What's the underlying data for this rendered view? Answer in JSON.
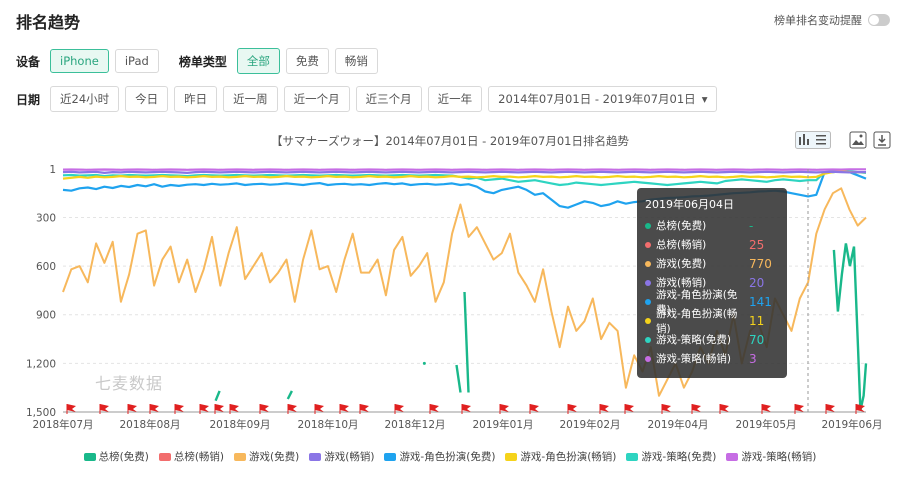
{
  "page": {
    "title": "排名趋势",
    "toggle_label": "榜单排名变动提醒"
  },
  "filters": {
    "device_label": "设备",
    "devices": [
      "iPhone",
      "iPad"
    ],
    "chart_type_label": "榜单类型",
    "chart_types": [
      "全部",
      "免费",
      "畅销"
    ],
    "date_label": "日期",
    "date_presets": [
      "近24小时",
      "今日",
      "昨日",
      "近一周",
      "近一个月",
      "近三个月",
      "近一年"
    ],
    "date_range": "2014年07月01日 - 2019年07月01日"
  },
  "chart_title": "【サマナーズウォー】2014年07月01日 - 2019年07月01日排名趋势",
  "watermark": "七麦数据",
  "tooltip": {
    "date": "2019年06月04日",
    "rows": [
      {
        "name": "总榜(免费)",
        "value": "-",
        "color": "#19b88a"
      },
      {
        "name": "总榜(畅销)",
        "value": "25",
        "color": "#f26d6d"
      },
      {
        "name": "游戏(免费)",
        "value": "770",
        "color": "#f7b85c"
      },
      {
        "name": "游戏(畅销)",
        "value": "20",
        "color": "#8a75e6"
      },
      {
        "name": "游戏-角色扮演(免费)",
        "value": "141",
        "color": "#1fa3ef"
      },
      {
        "name": "游戏-角色扮演(畅销)",
        "value": "11",
        "color": "#f5d31b"
      },
      {
        "name": "游戏-策略(免费)",
        "value": "70",
        "color": "#2ed4c1"
      },
      {
        "name": "游戏-策略(畅销)",
        "value": "3",
        "color": "#c66de4"
      }
    ]
  },
  "chart_data": {
    "type": "line",
    "y_reversed": true,
    "ylim": [
      1,
      1500
    ],
    "y_ticks": [
      "1",
      "300",
      "600",
      "900",
      "1,200",
      "1,500"
    ],
    "x_ticks": [
      "2018年07月",
      "2018年08月",
      "2018年09月",
      "2018年10月",
      "2018年12月",
      "2019年01月",
      "2019年02月",
      "2019年04月",
      "2019年05月",
      "2019年06月"
    ],
    "series": [
      {
        "name": "总榜(免费)",
        "color": "#19b88a",
        "segments": [
          [
            [
              0.5,
              760
            ],
            [
              0.505,
              1380
            ]
          ],
          [
            [
              0.19,
              1430
            ],
            [
              0.195,
              1370
            ]
          ],
          [
            [
              0.28,
              1420
            ],
            [
              0.285,
              1370
            ]
          ],
          [
            [
              0.45,
              1200
            ]
          ],
          [
            [
              0.49,
              1210
            ],
            [
              0.495,
              1380
            ]
          ],
          [
            [
              0.96,
              500
            ],
            [
              0.965,
              880
            ],
            [
              0.97,
              650
            ],
            [
              0.975,
              460
            ],
            [
              0.98,
              600
            ],
            [
              0.985,
              480
            ],
            [
              0.99,
              1100
            ],
            [
              0.993,
              1490
            ],
            [
              0.997,
              1400
            ],
            [
              1.0,
              1200
            ]
          ]
        ]
      },
      {
        "name": "总榜(畅销)",
        "color": "#f26d6d",
        "values": []
      },
      {
        "name": "游戏(免费)",
        "color": "#f7b85c",
        "values": [
          760,
          620,
          600,
          700,
          460,
          580,
          450,
          820,
          650,
          400,
          380,
          720,
          560,
          480,
          700,
          560,
          760,
          620,
          420,
          720,
          520,
          360,
          680,
          600,
          520,
          700,
          640,
          560,
          820,
          560,
          380,
          620,
          600,
          760,
          560,
          400,
          640,
          640,
          560,
          780,
          500,
          420,
          660,
          600,
          520,
          820,
          700,
          400,
          220,
          420,
          360,
          460,
          560,
          520,
          400,
          640,
          720,
          820,
          620,
          880,
          1100,
          850,
          1000,
          940,
          800,
          1050,
          950,
          1000,
          1350,
          1150,
          1250,
          1100,
          1400,
          1300,
          1200,
          1350,
          1250,
          1100,
          1200,
          1000,
          1150,
          900,
          1200,
          1000,
          950,
          1100,
          800,
          900,
          1000,
          800,
          700,
          400,
          250,
          150,
          120,
          250,
          350,
          300
        ]
      },
      {
        "name": "游戏(畅销)",
        "color": "#8a75e6",
        "values": [
          20,
          18,
          22,
          20,
          18,
          25,
          20,
          22,
          18,
          20,
          22,
          20,
          18,
          20,
          22,
          25,
          20,
          18,
          20,
          22,
          20,
          18,
          20,
          22,
          20,
          18,
          20,
          22,
          20,
          18,
          20,
          22,
          20,
          18,
          20,
          22,
          20,
          18,
          20,
          22,
          20,
          18,
          20,
          22,
          20,
          18,
          20,
          22,
          20,
          18,
          20,
          22,
          20,
          18,
          20,
          22,
          20,
          18,
          20,
          22,
          20,
          18,
          20,
          22,
          20,
          18,
          20,
          22,
          20,
          18,
          20,
          22,
          20,
          18,
          20,
          22,
          20,
          18,
          20,
          22,
          20,
          18,
          20,
          22,
          20,
          18,
          20,
          22,
          20,
          18,
          20,
          22,
          20,
          18,
          20,
          22,
          20,
          20
        ]
      },
      {
        "name": "游戏-角色扮演(免费)",
        "color": "#1fa3ef",
        "values": [
          130,
          135,
          120,
          115,
          125,
          110,
          118,
          105,
          112,
          100,
          108,
          95,
          110,
          100,
          105,
          98,
          95,
          100,
          92,
          98,
          95,
          90,
          100,
          95,
          92,
          98,
          95,
          90,
          95,
          100,
          92,
          88,
          100,
          95,
          92,
          98,
          95,
          100,
          92,
          88,
          95,
          90,
          100,
          95,
          92,
          98,
          95,
          90,
          100,
          95,
          110,
          140,
          150,
          130,
          120,
          110,
          130,
          160,
          150,
          190,
          230,
          240,
          220,
          200,
          210,
          230,
          220,
          200,
          215,
          205,
          200,
          190,
          185,
          180,
          178,
          175,
          170,
          168,
          165,
          160,
          155,
          150,
          148,
          145,
          140,
          138,
          135,
          140,
          150,
          160,
          170,
          160,
          20,
          20,
          15,
          20,
          40,
          60
        ]
      },
      {
        "name": "游戏-角色扮演(畅销)",
        "color": "#f5d31b",
        "values": [
          60,
          55,
          50,
          55,
          48,
          52,
          50,
          45,
          50,
          48,
          52,
          50,
          45,
          50,
          48,
          52,
          50,
          45,
          50,
          48,
          52,
          50,
          45,
          50,
          48,
          52,
          50,
          45,
          50,
          48,
          52,
          50,
          45,
          50,
          48,
          52,
          50,
          45,
          50,
          48,
          52,
          50,
          45,
          50,
          48,
          52,
          50,
          45,
          50,
          48,
          52,
          50,
          45,
          50,
          48,
          52,
          50,
          45,
          50,
          48,
          52,
          50,
          45,
          50,
          48,
          52,
          50,
          45,
          50,
          48,
          52,
          50,
          45,
          50,
          48,
          52,
          50,
          45,
          50,
          48,
          52,
          50,
          45,
          50,
          48,
          52,
          50,
          45,
          50,
          48,
          52,
          50,
          30,
          20,
          15,
          20,
          20,
          20
        ]
      },
      {
        "name": "游戏-策略(免费)",
        "color": "#2ed4c1",
        "values": [
          40,
          38,
          42,
          40,
          38,
          45,
          40,
          42,
          38,
          40,
          42,
          40,
          38,
          40,
          42,
          45,
          40,
          38,
          40,
          42,
          40,
          38,
          40,
          42,
          40,
          38,
          40,
          42,
          40,
          38,
          40,
          42,
          40,
          38,
          40,
          42,
          40,
          38,
          40,
          42,
          40,
          38,
          40,
          42,
          40,
          38,
          40,
          42,
          50,
          60,
          55,
          70,
          65,
          60,
          70,
          80,
          75,
          70,
          80,
          90,
          100,
          95,
          85,
          90,
          95,
          100,
          95,
          90,
          85,
          80,
          85,
          90,
          95,
          100,
          95,
          90,
          85,
          80,
          85,
          90,
          75,
          70,
          65,
          70,
          75,
          80,
          70,
          65,
          70,
          75,
          70,
          70,
          20,
          15,
          10,
          15,
          20,
          25
        ]
      },
      {
        "name": "游戏-策略(畅销)",
        "color": "#c66de4",
        "values": [
          5,
          4,
          5,
          6,
          5,
          4,
          5,
          6,
          5,
          4,
          5,
          6,
          5,
          4,
          5,
          6,
          5,
          4,
          5,
          6,
          5,
          4,
          5,
          6,
          5,
          4,
          5,
          6,
          5,
          4,
          5,
          6,
          5,
          4,
          5,
          6,
          5,
          4,
          5,
          6,
          5,
          4,
          5,
          6,
          5,
          4,
          5,
          6,
          5,
          4,
          5,
          6,
          5,
          4,
          5,
          6,
          5,
          4,
          5,
          6,
          5,
          4,
          5,
          6,
          5,
          4,
          5,
          6,
          5,
          4,
          5,
          6,
          5,
          4,
          5,
          6,
          5,
          4,
          5,
          6,
          5,
          4,
          5,
          6,
          5,
          4,
          5,
          6,
          5,
          4,
          5,
          6,
          5,
          4,
          5,
          3,
          3,
          3
        ]
      }
    ],
    "grid": true
  },
  "icons": [
    "bar-chart-icon",
    "list-icon",
    "image-download-icon",
    "download-icon",
    "caret-down-icon",
    "flag-icon"
  ]
}
